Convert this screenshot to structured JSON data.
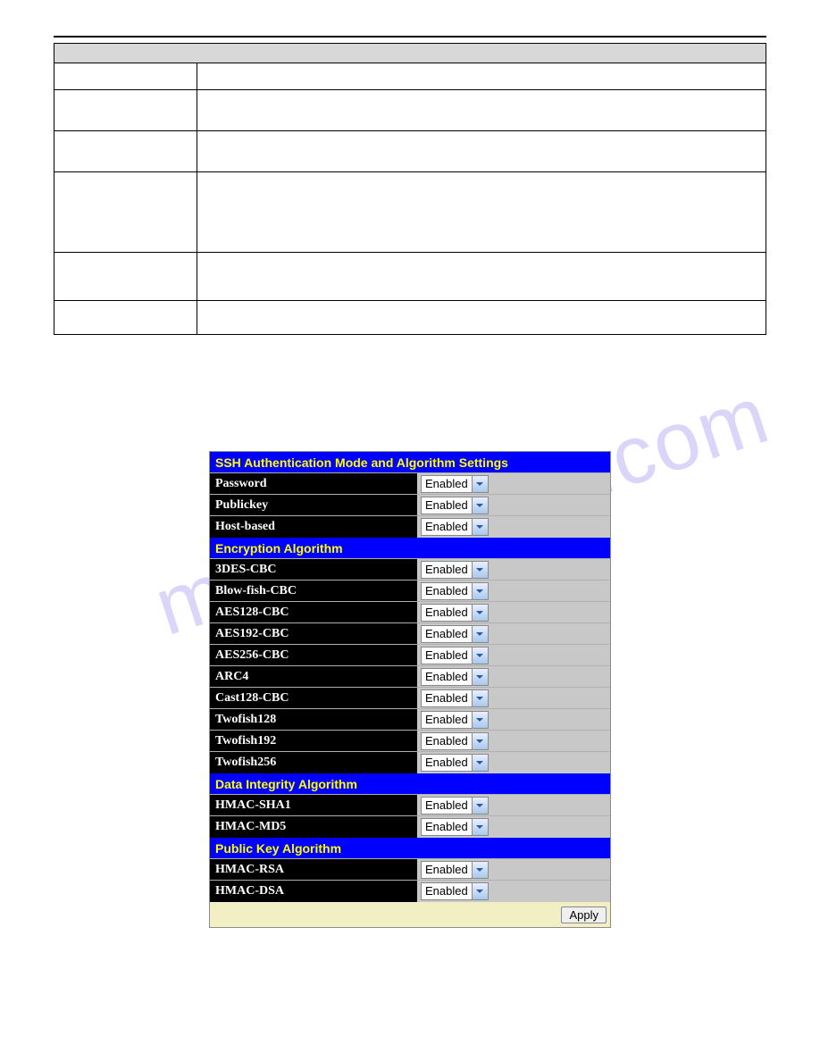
{
  "watermark": "manualslive.com",
  "doc_table": {
    "header_bg": "#d8d8d8",
    "border_color": "#000000",
    "rows": 6
  },
  "ssh": {
    "title": "SSH Authentication Mode and Algorithm Settings",
    "auth_rows": [
      {
        "label": "Password",
        "value": "Enabled"
      },
      {
        "label": "Publickey",
        "value": "Enabled"
      },
      {
        "label": "Host-based",
        "value": "Enabled"
      }
    ],
    "section_encryption": "Encryption Algorithm",
    "encryption_rows": [
      {
        "label": "3DES-CBC",
        "value": "Enabled"
      },
      {
        "label": "Blow-fish-CBC",
        "value": "Enabled"
      },
      {
        "label": "AES128-CBC",
        "value": "Enabled"
      },
      {
        "label": "AES192-CBC",
        "value": "Enabled"
      },
      {
        "label": "AES256-CBC",
        "value": "Enabled"
      },
      {
        "label": "ARC4",
        "value": "Enabled"
      },
      {
        "label": "Cast128-CBC",
        "value": "Enabled"
      },
      {
        "label": "Twofish128",
        "value": "Enabled"
      },
      {
        "label": "Twofish192",
        "value": "Enabled"
      },
      {
        "label": "Twofish256",
        "value": "Enabled"
      }
    ],
    "section_integrity": "Data Integrity Algorithm",
    "integrity_rows": [
      {
        "label": "HMAC-SHA1",
        "value": "Enabled"
      },
      {
        "label": "HMAC-MD5",
        "value": "Enabled"
      }
    ],
    "section_pubkey": "Public Key Algorithm",
    "pubkey_rows": [
      {
        "label": "HMAC-RSA",
        "value": "Enabled"
      },
      {
        "label": "HMAC-DSA",
        "value": "Enabled"
      }
    ],
    "apply_label": "Apply",
    "colors": {
      "section_bg": "#0000ff",
      "section_fg": "#ffff00",
      "label_bg": "#000000",
      "label_fg": "#ffffff",
      "control_bg": "#c8c8c8",
      "footer_bg": "#f3efc4"
    }
  }
}
